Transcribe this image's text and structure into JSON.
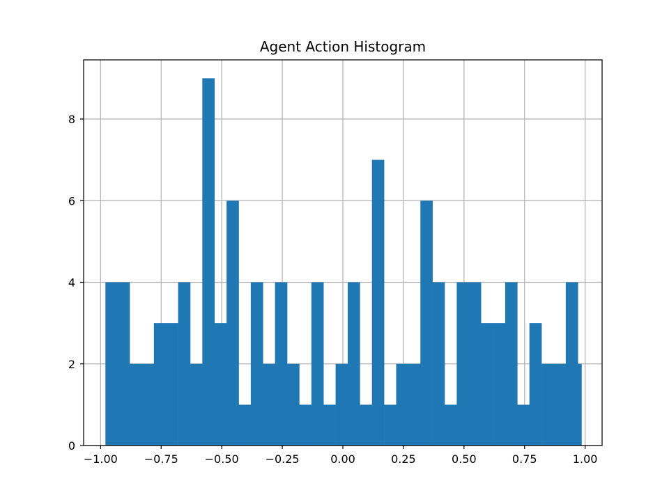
{
  "chart_data": {
    "type": "bar",
    "title": "Agent Action Histogram",
    "xlabel": "",
    "ylabel": "",
    "xlim": [
      -1.07,
      1.07
    ],
    "ylim": [
      0,
      9.45
    ],
    "grid": true,
    "bar_color": "#1f77b4",
    "grid_color": "#b0b0b0",
    "bin_edges": [
      -0.98,
      -0.93,
      -0.88,
      -0.83,
      -0.78,
      -0.73,
      -0.68,
      -0.63,
      -0.58,
      -0.53,
      -0.48,
      -0.43,
      -0.38,
      -0.33,
      -0.28,
      -0.23,
      -0.18,
      -0.13,
      -0.08,
      -0.03,
      0.02,
      0.07,
      0.12,
      0.17,
      0.22,
      0.27,
      0.32,
      0.37,
      0.42,
      0.47,
      0.52,
      0.57,
      0.62,
      0.67,
      0.72,
      0.77,
      0.82,
      0.87,
      0.92,
      0.97,
      0.985
    ],
    "counts": [
      4,
      4,
      2,
      2,
      3,
      3,
      4,
      2,
      9,
      3,
      6,
      1,
      4,
      2,
      4,
      2,
      1,
      4,
      1,
      2,
      4,
      1,
      7,
      1,
      2,
      2,
      6,
      4,
      1,
      4,
      4,
      3,
      3,
      4,
      1,
      3,
      2,
      2,
      4,
      2
    ],
    "x_ticks": [
      -1.0,
      -0.75,
      -0.5,
      -0.25,
      0.0,
      0.25,
      0.5,
      0.75,
      1.0
    ],
    "x_tick_labels": [
      "−1.00",
      "−0.75",
      "−0.50",
      "−0.25",
      "0.00",
      "0.25",
      "0.50",
      "0.75",
      "1.00"
    ],
    "y_ticks": [
      0,
      2,
      4,
      6,
      8
    ],
    "y_tick_labels": [
      "0",
      "2",
      "4",
      "6",
      "8"
    ]
  }
}
